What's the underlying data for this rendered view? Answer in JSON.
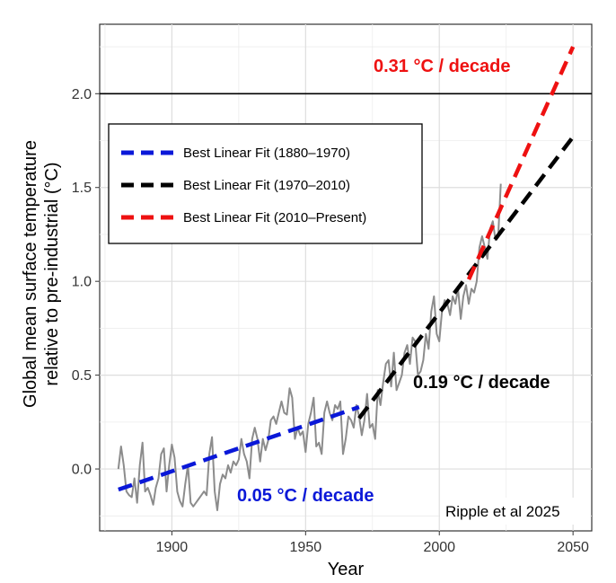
{
  "chart_data": {
    "type": "line",
    "xlabel": "Year",
    "ylabel_line1": "Global mean surface temperature",
    "ylabel_line2": "relative to pre-industrial (°C)",
    "xlim": [
      1873,
      2057
    ],
    "ylim": [
      -0.33,
      2.37
    ],
    "x_ticks": [
      1900,
      1950,
      2000,
      2050
    ],
    "x_tick_labels": [
      "1900",
      "1950",
      "2000",
      "2050"
    ],
    "y_ticks": [
      0.0,
      0.5,
      1.0,
      1.5,
      2.0
    ],
    "y_tick_labels": [
      "0.0",
      "0.5",
      "1.0",
      "1.5",
      "2.0"
    ],
    "threshold": {
      "y": 2.0
    },
    "series": [
      {
        "name": "Annual global mean temperature anomaly",
        "color": "#8c8c8c",
        "style": "solid",
        "x": [
          1880,
          1881,
          1882,
          1883,
          1884,
          1885,
          1886,
          1887,
          1888,
          1889,
          1890,
          1891,
          1892,
          1893,
          1894,
          1895,
          1896,
          1897,
          1898,
          1899,
          1900,
          1901,
          1902,
          1903,
          1904,
          1905,
          1906,
          1907,
          1908,
          1909,
          1910,
          1911,
          1912,
          1913,
          1914,
          1915,
          1916,
          1917,
          1918,
          1919,
          1920,
          1921,
          1922,
          1923,
          1924,
          1925,
          1926,
          1927,
          1928,
          1929,
          1930,
          1931,
          1932,
          1933,
          1934,
          1935,
          1936,
          1937,
          1938,
          1939,
          1940,
          1941,
          1942,
          1943,
          1944,
          1945,
          1946,
          1947,
          1948,
          1949,
          1950,
          1951,
          1952,
          1953,
          1954,
          1955,
          1956,
          1957,
          1958,
          1959,
          1960,
          1961,
          1962,
          1963,
          1964,
          1965,
          1966,
          1967,
          1968,
          1969,
          1970,
          1971,
          1972,
          1973,
          1974,
          1975,
          1976,
          1977,
          1978,
          1979,
          1980,
          1981,
          1982,
          1983,
          1984,
          1985,
          1986,
          1987,
          1988,
          1989,
          1990,
          1991,
          1992,
          1993,
          1994,
          1995,
          1996,
          1997,
          1998,
          1999,
          2000,
          2001,
          2002,
          2003,
          2004,
          2005,
          2006,
          2007,
          2008,
          2009,
          2010,
          2011,
          2012,
          2013,
          2014,
          2015,
          2016,
          2017,
          2018,
          2019,
          2020,
          2021,
          2022,
          2023
        ],
        "values": [
          0.0,
          0.12,
          0.02,
          -0.12,
          -0.14,
          -0.15,
          -0.05,
          -0.18,
          0.02,
          0.14,
          -0.12,
          -0.1,
          -0.14,
          -0.19,
          -0.1,
          -0.05,
          0.08,
          0.11,
          -0.12,
          0.02,
          0.13,
          0.06,
          -0.12,
          -0.17,
          -0.2,
          -0.08,
          0.02,
          -0.18,
          -0.2,
          -0.18,
          -0.16,
          -0.14,
          -0.12,
          -0.14,
          0.08,
          0.17,
          -0.12,
          -0.22,
          -0.08,
          -0.03,
          -0.05,
          0.02,
          -0.02,
          0.04,
          0.02,
          0.05,
          0.16,
          0.08,
          0.04,
          -0.05,
          0.16,
          0.22,
          0.16,
          0.04,
          0.16,
          0.1,
          0.15,
          0.26,
          0.28,
          0.24,
          0.3,
          0.36,
          0.3,
          0.29,
          0.43,
          0.38,
          0.16,
          0.22,
          0.18,
          0.2,
          0.09,
          0.24,
          0.3,
          0.38,
          0.12,
          0.14,
          0.08,
          0.3,
          0.36,
          0.3,
          0.26,
          0.34,
          0.32,
          0.36,
          0.08,
          0.16,
          0.28,
          0.26,
          0.22,
          0.34,
          0.28,
          0.18,
          0.26,
          0.4,
          0.22,
          0.24,
          0.16,
          0.42,
          0.34,
          0.46,
          0.56,
          0.58,
          0.44,
          0.62,
          0.42,
          0.46,
          0.5,
          0.62,
          0.66,
          0.56,
          0.7,
          0.68,
          0.5,
          0.52,
          0.58,
          0.72,
          0.64,
          0.84,
          0.92,
          0.72,
          0.68,
          0.84,
          0.9,
          0.88,
          0.82,
          0.92,
          0.88,
          0.96,
          0.8,
          0.92,
          0.98,
          0.88,
          0.96,
          0.94,
          1.0,
          1.18,
          1.24,
          1.18,
          1.12,
          1.28,
          1.32,
          1.22,
          1.24,
          1.52
        ]
      },
      {
        "name": "Best Linear Fit (1880–1970)",
        "color": "#0a18d8",
        "style": "dashed",
        "x": [
          1880,
          1970
        ],
        "values": [
          -0.11,
          0.33
        ]
      },
      {
        "name": "Best Linear Fit (1970–2010)",
        "color": "#000000",
        "style": "dashed",
        "x": [
          1970,
          2050
        ],
        "values": [
          0.27,
          1.77
        ]
      },
      {
        "name": "Best Linear Fit (2010–Present)",
        "color": "#ee1111",
        "style": "dashed",
        "x": [
          2011,
          2050
        ],
        "values": [
          1.01,
          2.25
        ]
      }
    ],
    "legend": {
      "placement": "top-left",
      "items": [
        {
          "label": "Best Linear Fit (1880–1970)",
          "color": "#0a18d8"
        },
        {
          "label": "Best Linear Fit (1970–2010)",
          "color": "#000000"
        },
        {
          "label": "Best Linear Fit (2010–Present)",
          "color": "#ee1111"
        }
      ]
    },
    "annotations": [
      {
        "key": "blue",
        "label": "0.05 °C  / decade",
        "color": "#0a18d8"
      },
      {
        "key": "black",
        "label": "0.19 °C  / decade",
        "color": "#000000"
      },
      {
        "key": "red",
        "label": "0.31 °C  / decade",
        "color": "#ee1111"
      }
    ],
    "credit": "Ripple et al 2025"
  }
}
